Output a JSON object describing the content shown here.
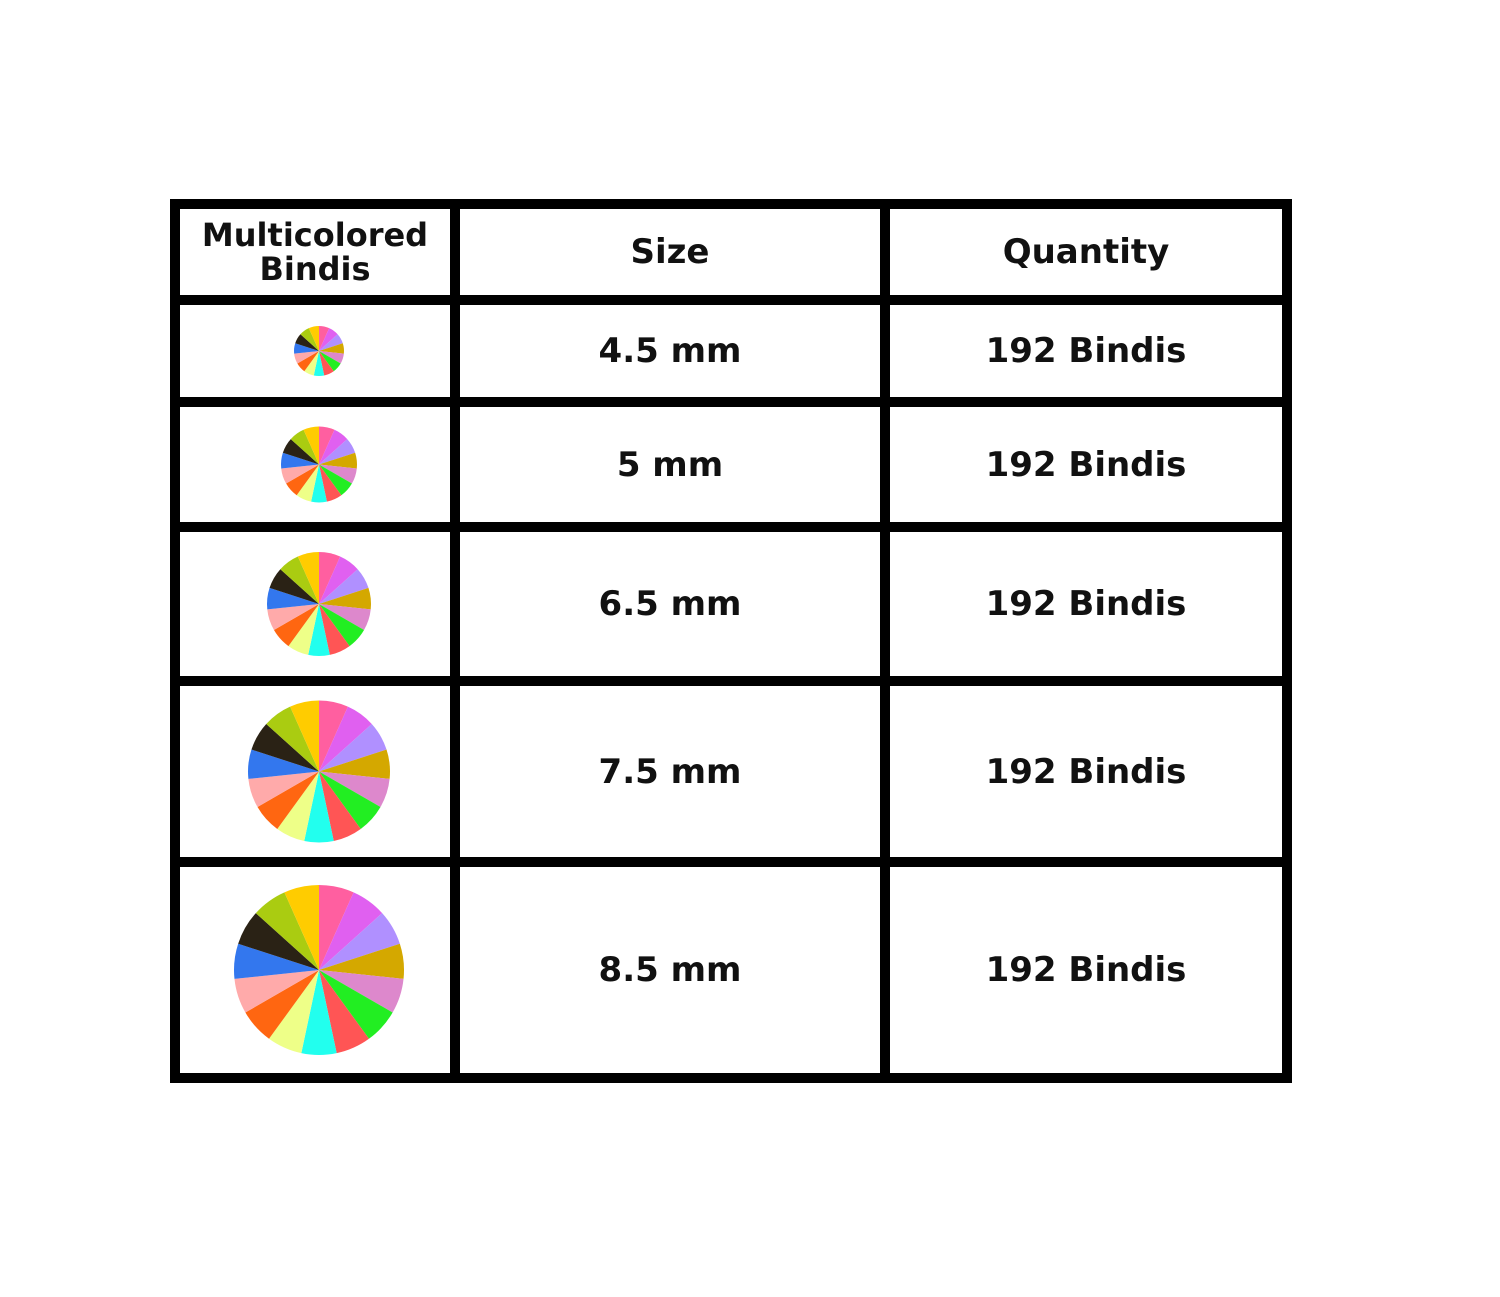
{
  "table": {
    "header": [
      "Multicolored Bindis",
      "Size",
      "Quantity"
    ],
    "rows": [
      [
        "4.5 mm",
        "192 Bindis"
      ],
      [
        "5 mm",
        "192 Bindis"
      ],
      [
        "6.5 mm",
        "192 Bindis"
      ],
      [
        "7.5 mm",
        "192 Bindis"
      ],
      [
        "8.5 mm",
        "192 Bindis"
      ]
    ]
  }
}
